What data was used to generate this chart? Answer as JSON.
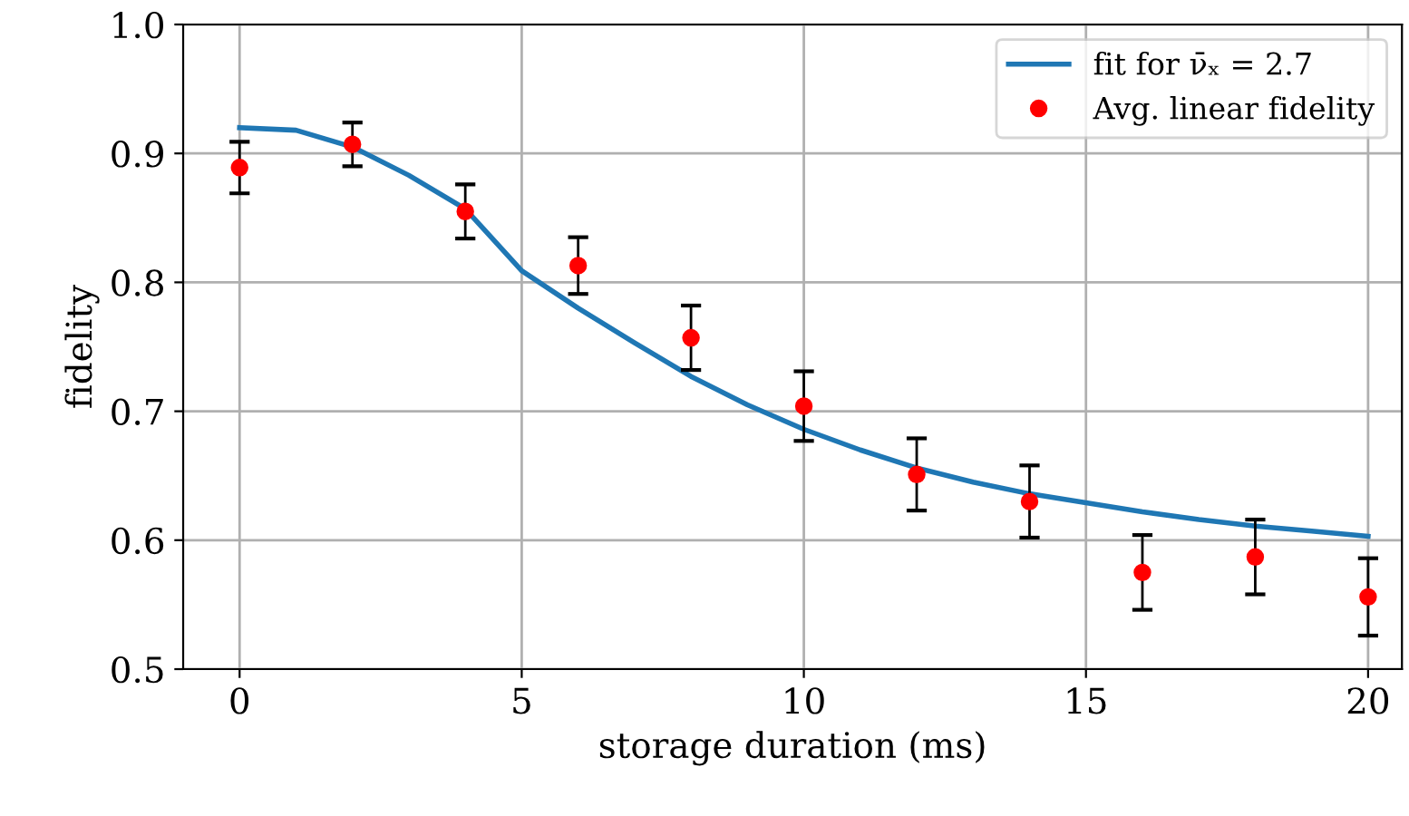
{
  "chart_data": {
    "type": "scatter",
    "xlabel": "storage duration (ms)",
    "ylabel": "fidelity",
    "xlim": [
      -1,
      20.6
    ],
    "xticks": [
      0,
      5,
      10,
      15,
      20
    ],
    "ylim": [
      0.5,
      1.0
    ],
    "yticks": [
      0.5,
      0.6,
      0.7,
      0.8,
      0.9,
      {
        "value": 1.0,
        "label": "1.0"
      }
    ],
    "grid": true,
    "legend": "top right",
    "series": [
      {
        "name": "fit for ν̄ₓ = 2.7",
        "type": "line",
        "color": "#1f77b4",
        "x": [
          0,
          1,
          2,
          3,
          4,
          5,
          6,
          7,
          8,
          9,
          10,
          11,
          12,
          13,
          14,
          15,
          16,
          17,
          18,
          19,
          20
        ],
        "values": [
          0.92,
          0.918,
          0.905,
          0.883,
          0.857,
          0.809,
          0.78,
          0.753,
          0.727,
          0.705,
          0.686,
          0.67,
          0.656,
          0.645,
          0.636,
          0.629,
          0.622,
          0.616,
          0.611,
          0.607,
          0.603
        ]
      },
      {
        "name": "Avg. linear fidelity",
        "marker": "circle",
        "color": "#ff0000",
        "x": [
          0,
          2,
          4,
          6,
          8,
          10,
          12,
          14,
          16,
          18,
          20
        ],
        "values": [
          0.889,
          0.907,
          0.855,
          0.813,
          0.757,
          0.704,
          0.651,
          0.63,
          0.575,
          0.587,
          0.556
        ],
        "errors": [
          0.02,
          0.017,
          0.021,
          0.022,
          0.025,
          0.027,
          0.028,
          0.028,
          0.029,
          0.029,
          0.03
        ]
      }
    ]
  }
}
